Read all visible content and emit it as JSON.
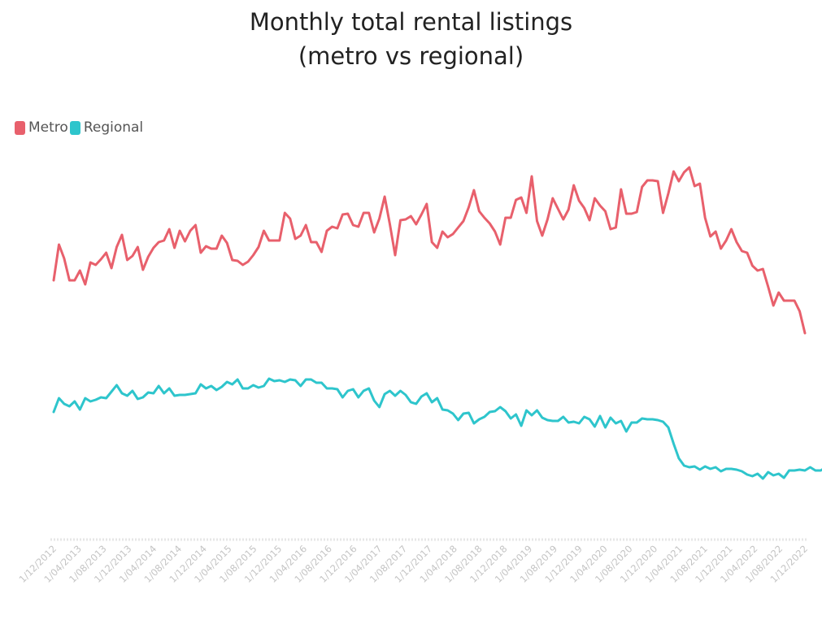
{
  "chart_data": {
    "type": "line",
    "title": [
      "Monthly total rental listings",
      "(metro vs regional)"
    ],
    "xlabel": "",
    "ylabel": "",
    "x_ticks": [
      "1/12/2012",
      "1/04/2013",
      "1/08/2013",
      "1/12/2013",
      "1/04/2014",
      "1/08/2014",
      "1/12/2014",
      "1/04/2015",
      "1/08/2015",
      "1/12/2015",
      "1/04/2016",
      "1/08/2016",
      "1/12/2016",
      "1/04/2017",
      "1/08/2017",
      "1/12/2017",
      "1/04/2018",
      "1/08/2018",
      "1/12/2018",
      "1/04/2019",
      "1/08/2019",
      "1/12/2019",
      "1/04/2020",
      "1/08/2020",
      "1/12/2020",
      "1/04/2021",
      "1/08/2021",
      "1/12/2021",
      "1/04/2022",
      "1/08/2022",
      "1/12/2022"
    ],
    "x_start": "2012-12",
    "grid": false,
    "legend_position": "top-left",
    "series": [
      {
        "name": "Metro",
        "color": "#e8606c",
        "values": [
          345,
          301,
          318,
          345,
          345,
          333,
          350,
          323,
          326,
          319,
          311,
          330,
          304,
          289,
          320,
          315,
          304,
          332,
          316,
          305,
          298,
          296,
          282,
          305,
          284,
          297,
          284,
          277,
          311,
          303,
          306,
          306,
          290,
          299,
          320,
          321,
          326,
          322,
          314,
          304,
          284,
          296,
          296,
          296,
          262,
          269,
          294,
          290,
          277,
          298,
          298,
          310,
          284,
          279,
          281,
          264,
          263,
          277,
          279,
          262,
          262,
          286,
          269,
          242,
          276,
          314,
          271,
          270,
          266,
          276,
          264,
          251,
          298,
          305,
          285,
          292,
          288,
          280,
          272,
          255,
          234,
          260,
          268,
          275,
          285,
          301,
          268,
          268,
          246,
          243,
          262,
          217,
          272,
          290,
          270,
          244,
          257,
          270,
          258,
          228,
          247,
          256,
          271,
          244,
          253,
          260,
          282,
          280,
          233,
          263,
          263,
          261,
          230,
          222,
          222,
          223,
          262,
          238,
          211,
          223,
          212,
          206,
          229,
          226,
          268,
          291,
          285,
          306,
          296,
          282,
          298,
          309,
          311,
          327,
          333,
          331,
          353,
          376,
          360,
          370,
          370,
          370,
          383,
          410
        ]
      },
      {
        "name": "Regional",
        "color": "#2ec5cc",
        "values": [
          507,
          490,
          497,
          500,
          494,
          504,
          490,
          494,
          492,
          489,
          490,
          482,
          474,
          484,
          487,
          481,
          491,
          489,
          483,
          484,
          475,
          484,
          478,
          487,
          486,
          486,
          485,
          484,
          473,
          478,
          475,
          480,
          476,
          470,
          473,
          467,
          478,
          478,
          474,
          477,
          475,
          466,
          469,
          468,
          470,
          467,
          468,
          475,
          467,
          467,
          471,
          471,
          478,
          478,
          479,
          489,
          481,
          479,
          489,
          481,
          478,
          493,
          501,
          485,
          481,
          487,
          481,
          486,
          495,
          497,
          488,
          484,
          495,
          490,
          504,
          505,
          509,
          517,
          509,
          508,
          521,
          516,
          513,
          507,
          506,
          501,
          506,
          515,
          510,
          524,
          505,
          511,
          505,
          514,
          517,
          518,
          518,
          513,
          520,
          519,
          521,
          513,
          516,
          525,
          512,
          526,
          514,
          521,
          518,
          531,
          520,
          520,
          515,
          516,
          516,
          517,
          519,
          526,
          546,
          564,
          573,
          575,
          574,
          578,
          574,
          577,
          575,
          580,
          577,
          577,
          578,
          580,
          584,
          586,
          583,
          589,
          581,
          585,
          583,
          588,
          579,
          579,
          578,
          579,
          575,
          579,
          579,
          575,
          578
        ]
      }
    ]
  }
}
